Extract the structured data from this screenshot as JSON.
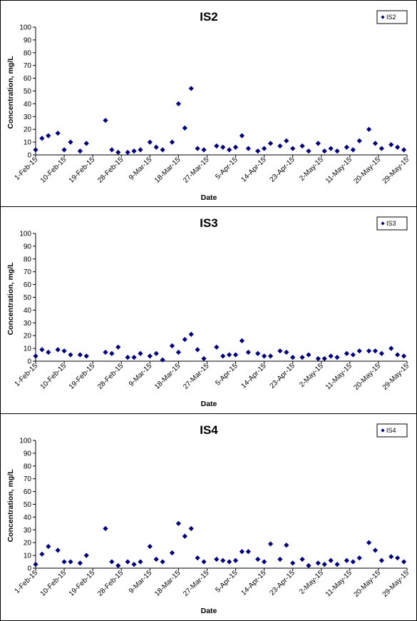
{
  "chart_data": [
    {
      "type": "scatter",
      "title": "IS2",
      "xlabel": "Date",
      "ylabel": "Concentration, mg/L",
      "ylim": [
        0,
        100
      ],
      "yticks": [
        "0",
        "10",
        "20",
        "30",
        "40",
        "50",
        "60",
        "70",
        "80",
        "90",
        "100"
      ],
      "xlim": [
        "2015-02-01",
        "2015-05-29"
      ],
      "xtick_labels": [
        "1-Feb-15",
        "10-Feb-15",
        "19-Feb-15",
        "28-Feb-15",
        "9-Mar-15",
        "18-Mar-15",
        "27-Mar-15",
        "5-Apr-15",
        "14-Apr-15",
        "23-Apr-15",
        "2-May-15",
        "11-May-15",
        "20-May-15",
        "29-May-15"
      ],
      "legend": {
        "position": "top-right",
        "entries": [
          "IS2"
        ]
      },
      "grid": false,
      "marker_color": "#00007f",
      "series": [
        {
          "name": "IS2",
          "points": [
            [
              "2015-02-01",
              4
            ],
            [
              "2015-02-03",
              13
            ],
            [
              "2015-02-05",
              15
            ],
            [
              "2015-02-08",
              17
            ],
            [
              "2015-02-10",
              4
            ],
            [
              "2015-02-12",
              10
            ],
            [
              "2015-02-15",
              3
            ],
            [
              "2015-02-17",
              9
            ],
            [
              "2015-02-23",
              27
            ],
            [
              "2015-02-25",
              4
            ],
            [
              "2015-02-27",
              2
            ],
            [
              "2015-03-02",
              2
            ],
            [
              "2015-03-04",
              3
            ],
            [
              "2015-03-06",
              4
            ],
            [
              "2015-03-09",
              10
            ],
            [
              "2015-03-11",
              6
            ],
            [
              "2015-03-13",
              4
            ],
            [
              "2015-03-16",
              10
            ],
            [
              "2015-03-18",
              40
            ],
            [
              "2015-03-20",
              21
            ],
            [
              "2015-03-22",
              52
            ],
            [
              "2015-03-24",
              5
            ],
            [
              "2015-03-26",
              4
            ],
            [
              "2015-03-30",
              7
            ],
            [
              "2015-04-01",
              6
            ],
            [
              "2015-04-03",
              4
            ],
            [
              "2015-04-05",
              6
            ],
            [
              "2015-04-07",
              15
            ],
            [
              "2015-04-09",
              5
            ],
            [
              "2015-04-12",
              3
            ],
            [
              "2015-04-14",
              5
            ],
            [
              "2015-04-16",
              9
            ],
            [
              "2015-04-19",
              7
            ],
            [
              "2015-04-21",
              11
            ],
            [
              "2015-04-23",
              5
            ],
            [
              "2015-04-26",
              7
            ],
            [
              "2015-04-28",
              3
            ],
            [
              "2015-05-01",
              9
            ],
            [
              "2015-05-03",
              3
            ],
            [
              "2015-05-05",
              5
            ],
            [
              "2015-05-07",
              3
            ],
            [
              "2015-05-10",
              6
            ],
            [
              "2015-05-12",
              4
            ],
            [
              "2015-05-14",
              11
            ],
            [
              "2015-05-17",
              20
            ],
            [
              "2015-05-19",
              9
            ],
            [
              "2015-05-21",
              5
            ],
            [
              "2015-05-24",
              8
            ],
            [
              "2015-05-26",
              6
            ],
            [
              "2015-05-28",
              4
            ]
          ]
        }
      ]
    },
    {
      "type": "scatter",
      "title": "IS3",
      "xlabel": "Date",
      "ylabel": "Concentration, mg/L",
      "ylim": [
        0,
        100
      ],
      "yticks": [
        "0",
        "10",
        "20",
        "30",
        "40",
        "50",
        "60",
        "70",
        "80",
        "90",
        "100"
      ],
      "xlim": [
        "2015-02-01",
        "2015-05-29"
      ],
      "xtick_labels": [
        "1-Feb-15",
        "10-Feb-15",
        "19-Feb-15",
        "28-Feb-15",
        "9-Mar-15",
        "18-Mar-15",
        "27-Mar-15",
        "5-Apr-15",
        "14-Apr-15",
        "23-Apr-15",
        "2-May-15",
        "11-May-15",
        "20-May-15",
        "29-May-15"
      ],
      "legend": {
        "position": "top-right",
        "entries": [
          "IS3"
        ]
      },
      "grid": false,
      "marker_color": "#00007f",
      "series": [
        {
          "name": "IS3",
          "points": [
            [
              "2015-02-01",
              4
            ],
            [
              "2015-02-03",
              9
            ],
            [
              "2015-02-05",
              7
            ],
            [
              "2015-02-08",
              9
            ],
            [
              "2015-02-10",
              8
            ],
            [
              "2015-02-12",
              5
            ],
            [
              "2015-02-15",
              5
            ],
            [
              "2015-02-17",
              4
            ],
            [
              "2015-02-23",
              7
            ],
            [
              "2015-02-25",
              6
            ],
            [
              "2015-02-27",
              11
            ],
            [
              "2015-03-02",
              3
            ],
            [
              "2015-03-04",
              3
            ],
            [
              "2015-03-06",
              6
            ],
            [
              "2015-03-09",
              4
            ],
            [
              "2015-03-11",
              6
            ],
            [
              "2015-03-13",
              1
            ],
            [
              "2015-03-16",
              12
            ],
            [
              "2015-03-18",
              7
            ],
            [
              "2015-03-20",
              17
            ],
            [
              "2015-03-22",
              21
            ],
            [
              "2015-03-24",
              9
            ],
            [
              "2015-03-26",
              2
            ],
            [
              "2015-03-30",
              11
            ],
            [
              "2015-04-01",
              4
            ],
            [
              "2015-04-03",
              5
            ],
            [
              "2015-04-05",
              5
            ],
            [
              "2015-04-07",
              16
            ],
            [
              "2015-04-09",
              7
            ],
            [
              "2015-04-12",
              6
            ],
            [
              "2015-04-14",
              4
            ],
            [
              "2015-04-16",
              4
            ],
            [
              "2015-04-19",
              8
            ],
            [
              "2015-04-21",
              7
            ],
            [
              "2015-04-23",
              3
            ],
            [
              "2015-04-26",
              3
            ],
            [
              "2015-04-28",
              5
            ],
            [
              "2015-05-01",
              2
            ],
            [
              "2015-05-03",
              2
            ],
            [
              "2015-05-05",
              4
            ],
            [
              "2015-05-07",
              3
            ],
            [
              "2015-05-10",
              6
            ],
            [
              "2015-05-12",
              5
            ],
            [
              "2015-05-14",
              8
            ],
            [
              "2015-05-17",
              8
            ],
            [
              "2015-05-19",
              8
            ],
            [
              "2015-05-21",
              6
            ],
            [
              "2015-05-24",
              10
            ],
            [
              "2015-05-26",
              5
            ],
            [
              "2015-05-28",
              4
            ]
          ]
        }
      ]
    },
    {
      "type": "scatter",
      "title": "IS4",
      "xlabel": "Date",
      "ylabel": "Concentration, mg/L",
      "ylim": [
        0,
        100
      ],
      "yticks": [
        "0",
        "10",
        "20",
        "30",
        "40",
        "50",
        "60",
        "70",
        "80",
        "90",
        "100"
      ],
      "xlim": [
        "2015-02-01",
        "2015-05-29"
      ],
      "xtick_labels": [
        "1-Feb-15",
        "10-Feb-15",
        "19-Feb-15",
        "28-Feb-15",
        "9-Mar-15",
        "18-Mar-15",
        "27-Mar-15",
        "5-Apr-15",
        "14-Apr-15",
        "23-Apr-15",
        "2-May-15",
        "11-May-15",
        "20-May-15",
        "29-May-15"
      ],
      "legend": {
        "position": "top-right",
        "entries": [
          "IS4"
        ]
      },
      "grid": false,
      "marker_color": "#00007f",
      "series": [
        {
          "name": "IS4",
          "points": [
            [
              "2015-02-01",
              3
            ],
            [
              "2015-02-03",
              11
            ],
            [
              "2015-02-05",
              17
            ],
            [
              "2015-02-08",
              14
            ],
            [
              "2015-02-10",
              5
            ],
            [
              "2015-02-12",
              5
            ],
            [
              "2015-02-15",
              4
            ],
            [
              "2015-02-17",
              10
            ],
            [
              "2015-02-23",
              31
            ],
            [
              "2015-02-25",
              5
            ],
            [
              "2015-02-27",
              2
            ],
            [
              "2015-03-02",
              5
            ],
            [
              "2015-03-04",
              3
            ],
            [
              "2015-03-06",
              5
            ],
            [
              "2015-03-09",
              17
            ],
            [
              "2015-03-11",
              7
            ],
            [
              "2015-03-13",
              5
            ],
            [
              "2015-03-16",
              12
            ],
            [
              "2015-03-18",
              35
            ],
            [
              "2015-03-20",
              25
            ],
            [
              "2015-03-22",
              31
            ],
            [
              "2015-03-24",
              8
            ],
            [
              "2015-03-26",
              5
            ],
            [
              "2015-03-30",
              7
            ],
            [
              "2015-04-01",
              6
            ],
            [
              "2015-04-03",
              5
            ],
            [
              "2015-04-05",
              6
            ],
            [
              "2015-04-07",
              13
            ],
            [
              "2015-04-09",
              13
            ],
            [
              "2015-04-12",
              7
            ],
            [
              "2015-04-14",
              5
            ],
            [
              "2015-04-16",
              19
            ],
            [
              "2015-04-19",
              7
            ],
            [
              "2015-04-21",
              18
            ],
            [
              "2015-04-23",
              4
            ],
            [
              "2015-04-26",
              7
            ],
            [
              "2015-04-28",
              2
            ],
            [
              "2015-05-01",
              4
            ],
            [
              "2015-05-03",
              3
            ],
            [
              "2015-05-05",
              6
            ],
            [
              "2015-05-07",
              3
            ],
            [
              "2015-05-10",
              6
            ],
            [
              "2015-05-12",
              5
            ],
            [
              "2015-05-14",
              8
            ],
            [
              "2015-05-17",
              20
            ],
            [
              "2015-05-19",
              14
            ],
            [
              "2015-05-21",
              6
            ],
            [
              "2015-05-24",
              9
            ],
            [
              "2015-05-26",
              8
            ],
            [
              "2015-05-28",
              5
            ]
          ]
        }
      ]
    }
  ]
}
